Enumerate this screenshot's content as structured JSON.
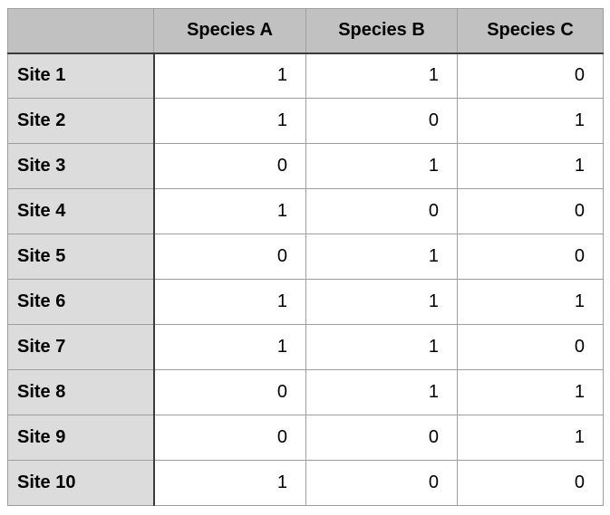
{
  "table": {
    "corner_label": "",
    "columns": [
      "Species A",
      "Species B",
      "Species C"
    ],
    "rows": [
      {
        "label": "Site 1",
        "values": [
          1,
          1,
          0
        ]
      },
      {
        "label": "Site 2",
        "values": [
          1,
          0,
          1
        ]
      },
      {
        "label": "Site 3",
        "values": [
          0,
          1,
          1
        ]
      },
      {
        "label": "Site 4",
        "values": [
          1,
          0,
          0
        ]
      },
      {
        "label": "Site 5",
        "values": [
          0,
          1,
          0
        ]
      },
      {
        "label": "Site 6",
        "values": [
          1,
          1,
          1
        ]
      },
      {
        "label": "Site 7",
        "values": [
          1,
          1,
          0
        ]
      },
      {
        "label": "Site 8",
        "values": [
          0,
          1,
          1
        ]
      },
      {
        "label": "Site 9",
        "values": [
          0,
          0,
          1
        ]
      },
      {
        "label": "Site 10",
        "values": [
          1,
          0,
          0
        ]
      }
    ]
  },
  "chart_data": {
    "type": "table",
    "title": "",
    "columns": [
      "Species A",
      "Species B",
      "Species C"
    ],
    "row_labels": [
      "Site 1",
      "Site 2",
      "Site 3",
      "Site 4",
      "Site 5",
      "Site 6",
      "Site 7",
      "Site 8",
      "Site 9",
      "Site 10"
    ],
    "values": [
      [
        1,
        1,
        0
      ],
      [
        1,
        0,
        1
      ],
      [
        0,
        1,
        1
      ],
      [
        1,
        0,
        0
      ],
      [
        0,
        1,
        0
      ],
      [
        1,
        1,
        1
      ],
      [
        1,
        1,
        0
      ],
      [
        0,
        1,
        1
      ],
      [
        0,
        0,
        1
      ],
      [
        1,
        0,
        0
      ]
    ]
  },
  "colors": {
    "header_bg": "#c1c1c1",
    "row_label_bg": "#dcdcdc",
    "cell_bg": "#ffffff",
    "grid_line": "#9e9e9e",
    "strong_line": "#3b3b3b",
    "text": "#000000"
  }
}
